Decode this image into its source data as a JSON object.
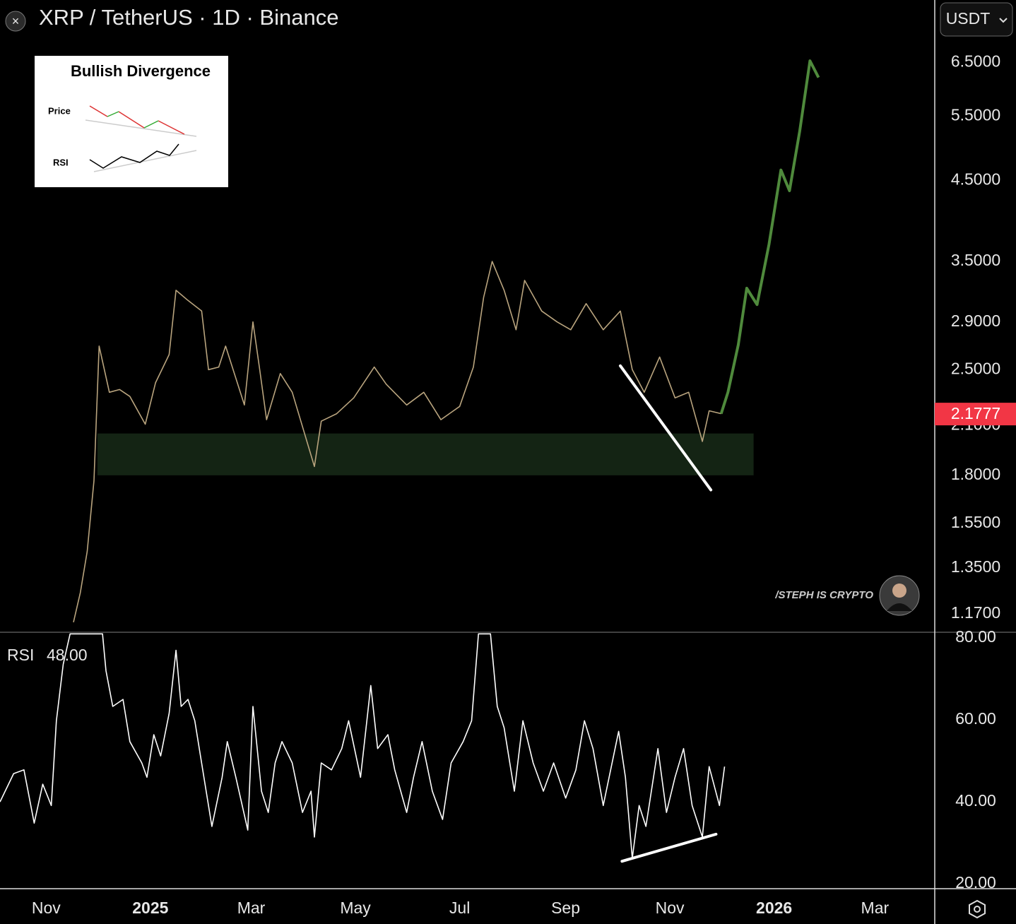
{
  "header": {
    "title": "XRP / TetherUS · 1D · Binance",
    "currency": "USDT"
  },
  "watermark": "/STEPH IS CRYPTO",
  "inset": {
    "title": "Bullish Divergence",
    "labels": [
      "Price",
      "RSI"
    ]
  },
  "chart_data": [
    {
      "type": "line",
      "scale": "log",
      "xlim": [
        "2024-10-05",
        "2026-04-05"
      ],
      "ylim": [
        1.105,
        7.89
      ],
      "yticks": [
        {
          "value": 6.5,
          "label": "6.5000"
        },
        {
          "value": 5.5,
          "label": "5.5000"
        },
        {
          "value": 4.5,
          "label": "4.5000"
        },
        {
          "value": 3.5,
          "label": "3.5000"
        },
        {
          "value": 2.9,
          "label": "2.9000"
        },
        {
          "value": 2.5,
          "label": "2.5000"
        },
        {
          "value": 2.1,
          "label": "2.1000"
        },
        {
          "value": 1.8,
          "label": "1.8000"
        },
        {
          "value": 1.55,
          "label": "1.5500"
        },
        {
          "value": 1.35,
          "label": "1.3500"
        },
        {
          "value": 1.17,
          "label": "1.1700"
        }
      ],
      "grid": false,
      "x": [
        "2024-11-17",
        "2024-11-21",
        "2024-11-25",
        "2024-11-29",
        "2024-12-02",
        "2024-12-08",
        "2024-12-14",
        "2024-12-20",
        "2024-12-29",
        "2025-01-04",
        "2025-01-12",
        "2025-01-16",
        "2025-01-23",
        "2025-01-31",
        "2025-02-04",
        "2025-02-10",
        "2025-02-14",
        "2025-02-25",
        "2025-03-02",
        "2025-03-06",
        "2025-03-10",
        "2025-03-18",
        "2025-03-25",
        "2025-04-07",
        "2025-04-11",
        "2025-04-20",
        "2025-04-30",
        "2025-05-12",
        "2025-05-19",
        "2025-05-31",
        "2025-06-10",
        "2025-06-20",
        "2025-07-01",
        "2025-07-09",
        "2025-07-15",
        "2025-07-20",
        "2025-07-27",
        "2025-08-03",
        "2025-08-08",
        "2025-08-18",
        "2025-08-27",
        "2025-09-04",
        "2025-09-13",
        "2025-09-23",
        "2025-10-03",
        "2025-10-10",
        "2025-10-17",
        "2025-10-26",
        "2025-11-04",
        "2025-11-12",
        "2025-11-20",
        "2025-11-24",
        "2025-12-01",
        "2025-12-05",
        "2025-12-11",
        "2025-12-16",
        "2025-12-22",
        "2025-12-29",
        "2026-01-05",
        "2026-01-10",
        "2026-01-16",
        "2026-01-22",
        "2026-01-27"
      ],
      "series": [
        {
          "color": "#b9a47e",
          "width": 1.6,
          "values": [
            1.14,
            1.25,
            1.42,
            1.77,
            2.69,
            2.33,
            2.35,
            2.3,
            2.11,
            2.4,
            2.62,
            3.2,
            3.1,
            3.0,
            2.5,
            2.52,
            2.69,
            2.24,
            2.9,
            2.5,
            2.14,
            2.47,
            2.33,
            1.85,
            2.13,
            2.18,
            2.29,
            2.52,
            2.39,
            2.24,
            2.33,
            2.14,
            2.23,
            2.52,
            3.13,
            3.5,
            3.2,
            2.83,
            3.3,
            3.0,
            2.9,
            2.83,
            3.07,
            2.83,
            3.0,
            2.5,
            2.33,
            2.6,
            2.29,
            2.33,
            2.0,
            2.2,
            2.18,
            null,
            null,
            null,
            null,
            null,
            null,
            null,
            null,
            null,
            null
          ]
        },
        {
          "color": "#4f8a3c",
          "width": 4,
          "values": [
            null,
            null,
            null,
            null,
            null,
            null,
            null,
            null,
            null,
            null,
            null,
            null,
            null,
            null,
            null,
            null,
            null,
            null,
            null,
            null,
            null,
            null,
            null,
            null,
            null,
            null,
            null,
            null,
            null,
            null,
            null,
            null,
            null,
            null,
            null,
            null,
            null,
            null,
            null,
            null,
            null,
            null,
            null,
            null,
            null,
            null,
            null,
            null,
            null,
            null,
            null,
            null,
            2.18,
            2.33,
            2.7,
            3.22,
            3.06,
            3.69,
            4.65,
            4.36,
            5.25,
            6.53,
            6.2
          ]
        }
      ],
      "last_value": 2.1777,
      "last_color": "#f23645",
      "zone": {
        "x": [
          "2024-12-01",
          "2025-12-20"
        ],
        "y": [
          1.8,
          2.05
        ],
        "color": "#142414"
      },
      "trendlines": [
        {
          "x": [
            "2025-10-03",
            "2025-11-25"
          ],
          "y": [
            2.53,
            1.72
          ],
          "color": "#ffffff"
        }
      ]
    },
    {
      "type": "line",
      "label": "RSI",
      "last_value": {
        "value": 48,
        "label": "48.00"
      },
      "xlim": [
        "2024-10-05",
        "2026-04-05"
      ],
      "ylim": [
        18.8,
        81.4
      ],
      "yticks": [
        {
          "value": 80,
          "label": "80.00"
        },
        {
          "value": 60,
          "label": "60.00"
        },
        {
          "value": 40,
          "label": "40.00"
        },
        {
          "value": 20,
          "label": "20.00"
        }
      ],
      "xticks": [
        {
          "value": "2024-11-01",
          "label": "Nov"
        },
        {
          "value": "2025-01-01",
          "label": "2025"
        },
        {
          "value": "2025-03-01",
          "label": "Mar"
        },
        {
          "value": "2025-05-01",
          "label": "May"
        },
        {
          "value": "2025-07-01",
          "label": "Jul"
        },
        {
          "value": "2025-09-01",
          "label": "Sep"
        },
        {
          "value": "2025-11-01",
          "label": "Nov"
        },
        {
          "value": "2026-01-01",
          "label": "2026"
        },
        {
          "value": "2026-03-01",
          "label": "Mar"
        }
      ],
      "grid": false,
      "x": [
        "2024-10-05",
        "2024-10-13",
        "2024-10-19",
        "2024-10-25",
        "2024-10-30",
        "2024-11-04",
        "2024-11-07",
        "2024-11-11",
        "2024-11-15",
        "2024-12-04",
        "2024-12-06",
        "2024-12-10",
        "2024-12-16",
        "2024-12-20",
        "2024-12-27",
        "2024-12-30",
        "2025-01-03",
        "2025-01-07",
        "2025-01-12",
        "2025-01-16",
        "2025-01-19",
        "2025-01-23",
        "2025-01-27",
        "2025-02-02",
        "2025-02-06",
        "2025-02-12",
        "2025-02-15",
        "2025-02-20",
        "2025-02-27",
        "2025-03-02",
        "2025-03-07",
        "2025-03-11",
        "2025-03-15",
        "2025-03-19",
        "2025-03-25",
        "2025-03-31",
        "2025-04-05",
        "2025-04-07",
        "2025-04-11",
        "2025-04-17",
        "2025-04-23",
        "2025-04-27",
        "2025-05-04",
        "2025-05-10",
        "2025-05-14",
        "2025-05-20",
        "2025-05-24",
        "2025-05-31",
        "2025-06-04",
        "2025-06-09",
        "2025-06-15",
        "2025-06-21",
        "2025-06-26",
        "2025-07-03",
        "2025-07-08",
        "2025-07-12",
        "2025-07-19",
        "2025-07-23",
        "2025-07-27",
        "2025-08-02",
        "2025-08-07",
        "2025-08-13",
        "2025-08-19",
        "2025-08-25",
        "2025-09-01",
        "2025-09-07",
        "2025-09-12",
        "2025-09-17",
        "2025-09-23",
        "2025-10-02",
        "2025-10-06",
        "2025-10-10",
        "2025-10-14",
        "2025-10-18",
        "2025-10-25",
        "2025-10-30",
        "2025-11-04",
        "2025-11-09",
        "2025-11-14",
        "2025-11-20",
        "2025-11-24",
        "2025-11-30",
        "2025-12-03"
      ],
      "series": [
        {
          "color": "#ffffff",
          "width": 1.6,
          "values": [
            40,
            46.9,
            47.8,
            34.8,
            44.3,
            39.1,
            59.8,
            73.6,
            81,
            81,
            72,
            63.3,
            65,
            54.7,
            49.5,
            46,
            56.4,
            51.2,
            61.6,
            77,
            63.3,
            65,
            59.8,
            44.3,
            34,
            46,
            54.7,
            46,
            33.1,
            63.3,
            42.6,
            37.4,
            49.5,
            54.7,
            49.5,
            37.4,
            42.6,
            31.4,
            49.5,
            47.8,
            53,
            59.8,
            46,
            68.4,
            53,
            56.4,
            47.8,
            37.4,
            46,
            54.7,
            42.6,
            35.7,
            49.5,
            54.7,
            59.8,
            81,
            81,
            63.3,
            58.1,
            42.6,
            59.8,
            49.5,
            42.6,
            49.5,
            40.9,
            47.8,
            59.8,
            53,
            39.1,
            57.2,
            46,
            26.2,
            39.1,
            34,
            53,
            37.4,
            46,
            53,
            39.1,
            31.4,
            48.6,
            39.1,
            48.6
          ]
        }
      ],
      "trendlines": [
        {
          "x": [
            "2025-10-04",
            "2025-11-28"
          ],
          "y": [
            25.5,
            32.1
          ],
          "color": "#ffffff"
        }
      ]
    }
  ]
}
